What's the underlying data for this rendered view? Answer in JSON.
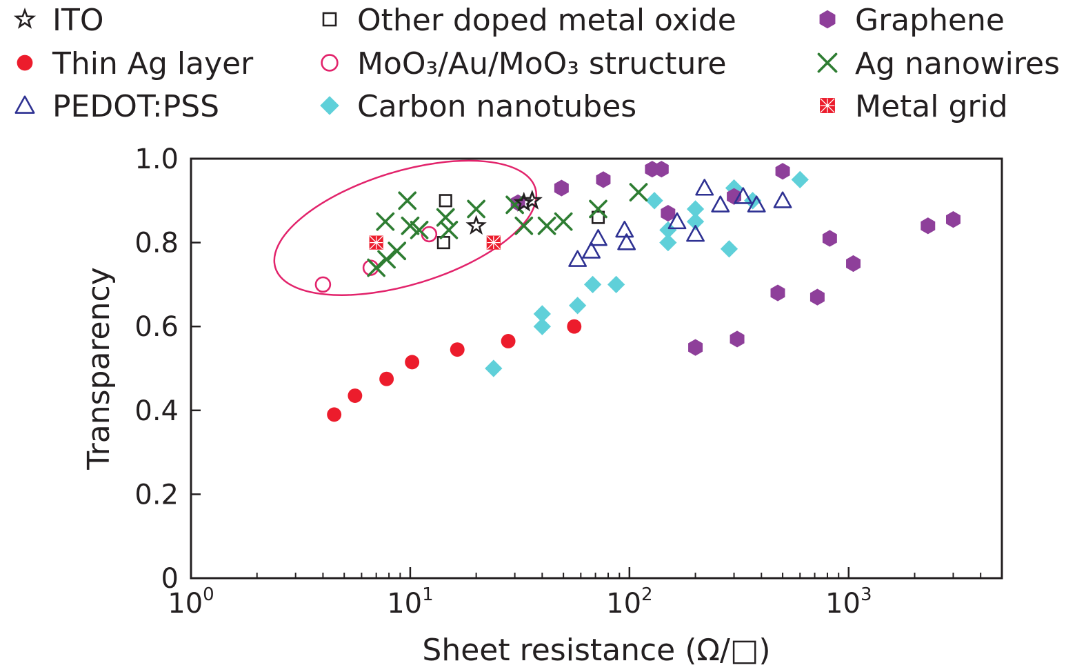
{
  "chart_data": {
    "type": "scatter",
    "title": "",
    "xlabel": "Sheet resistance (Ω/□)",
    "ylabel": "Transparency",
    "xscale": "log",
    "xlim": [
      1,
      5000
    ],
    "ylim": [
      0,
      1.0
    ],
    "grid": false,
    "legend_position": "top",
    "x_ticks": [
      {
        "value": 1,
        "base": "10",
        "exp": "0"
      },
      {
        "value": 10,
        "base": "10",
        "exp": "1"
      },
      {
        "value": 100,
        "base": "10",
        "exp": "2"
      },
      {
        "value": 1000,
        "base": "10",
        "exp": "3"
      }
    ],
    "y_ticks": [
      {
        "value": 0,
        "label": "0"
      },
      {
        "value": 0.2,
        "label": "0.2"
      },
      {
        "value": 0.4,
        "label": "0.4"
      },
      {
        "value": 0.6,
        "label": "0.6"
      },
      {
        "value": 0.8,
        "label": "0.8"
      },
      {
        "value": 1.0,
        "label": "1.0"
      }
    ],
    "annotation": {
      "type": "ellipse",
      "color": "#e2236b",
      "cx": 9.5,
      "cy": 0.835,
      "rx_decades": 0.62,
      "ry": 0.135,
      "angle_deg": -17
    },
    "series": [
      {
        "name": "ITO",
        "marker": "star",
        "color": "#231f20",
        "fill": "none",
        "points": [
          [
            20,
            0.84
          ],
          [
            36,
            0.9
          ],
          [
            33,
            0.895
          ]
        ]
      },
      {
        "name": "Thin Ag layer",
        "marker": "circle",
        "color": "#ec1c2c",
        "fill": "#ec1c2c",
        "points": [
          [
            4.5,
            0.39
          ],
          [
            5.6,
            0.435
          ],
          [
            7.8,
            0.475
          ],
          [
            10.2,
            0.515
          ],
          [
            16.4,
            0.545
          ],
          [
            28,
            0.565
          ],
          [
            56,
            0.6
          ]
        ]
      },
      {
        "name": "PEDOT:PSS",
        "marker": "triangle",
        "color": "#2e3192",
        "fill": "none",
        "points": [
          [
            58,
            0.76
          ],
          [
            67,
            0.78
          ],
          [
            72,
            0.81
          ],
          [
            95,
            0.83
          ],
          [
            97,
            0.8
          ],
          [
            165,
            0.85
          ],
          [
            200,
            0.82
          ],
          [
            220,
            0.93
          ],
          [
            260,
            0.89
          ],
          [
            330,
            0.91
          ],
          [
            380,
            0.89
          ],
          [
            500,
            0.9
          ]
        ]
      },
      {
        "name": "Other doped metal oxide",
        "marker": "square",
        "color": "#231f20",
        "fill": "none",
        "points": [
          [
            14.5,
            0.9
          ],
          [
            14.2,
            0.8
          ],
          [
            72,
            0.86
          ]
        ]
      },
      {
        "name": "MoO₃/Au/MoO₃ structure",
        "marker": "circle",
        "color": "#e2236b",
        "fill": "none",
        "points": [
          [
            4.0,
            0.7
          ],
          [
            6.6,
            0.74
          ],
          [
            12.2,
            0.82
          ]
        ]
      },
      {
        "name": "Carbon nanotubes",
        "marker": "diamond",
        "color": "#5fd0d9",
        "fill": "#5fd0d9",
        "points": [
          [
            24,
            0.5
          ],
          [
            40,
            0.6
          ],
          [
            40,
            0.63
          ],
          [
            58,
            0.65
          ],
          [
            68,
            0.7
          ],
          [
            87,
            0.7
          ],
          [
            130,
            0.9
          ],
          [
            150,
            0.8
          ],
          [
            150,
            0.83
          ],
          [
            200,
            0.85
          ],
          [
            200,
            0.88
          ],
          [
            285,
            0.785
          ],
          [
            300,
            0.93
          ],
          [
            365,
            0.9
          ],
          [
            600,
            0.95
          ]
        ]
      },
      {
        "name": "Graphene",
        "marker": "hexagon",
        "color": "#8e3f9a",
        "fill": "#8e3f9a",
        "points": [
          [
            31,
            0.895
          ],
          [
            49,
            0.93
          ],
          [
            76,
            0.95
          ],
          [
            127,
            0.975
          ],
          [
            140,
            0.975
          ],
          [
            150,
            0.87
          ],
          [
            200,
            0.55
          ],
          [
            300,
            0.91
          ],
          [
            310,
            0.57
          ],
          [
            475,
            0.68
          ],
          [
            500,
            0.97
          ],
          [
            720,
            0.67
          ],
          [
            820,
            0.81
          ],
          [
            1050,
            0.75
          ],
          [
            2300,
            0.84
          ],
          [
            3000,
            0.855
          ]
        ]
      },
      {
        "name": "Ag nanowires",
        "marker": "x",
        "color": "#2e7d32",
        "fill": "none",
        "points": [
          [
            7,
            0.74
          ],
          [
            7.8,
            0.76
          ],
          [
            8.7,
            0.78
          ],
          [
            7.7,
            0.85
          ],
          [
            9.7,
            0.9
          ],
          [
            10,
            0.84
          ],
          [
            11,
            0.83
          ],
          [
            14.5,
            0.86
          ],
          [
            15,
            0.83
          ],
          [
            20,
            0.88
          ],
          [
            30,
            0.89
          ],
          [
            33,
            0.84
          ],
          [
            42,
            0.84
          ],
          [
            50,
            0.85
          ],
          [
            72,
            0.88
          ],
          [
            110,
            0.92
          ]
        ]
      },
      {
        "name": "Metal grid",
        "marker": "square-pattern",
        "color": "#ec1c2c",
        "fill": "#ec1c2c",
        "points": [
          [
            7.0,
            0.8
          ],
          [
            24,
            0.8
          ]
        ]
      }
    ]
  }
}
